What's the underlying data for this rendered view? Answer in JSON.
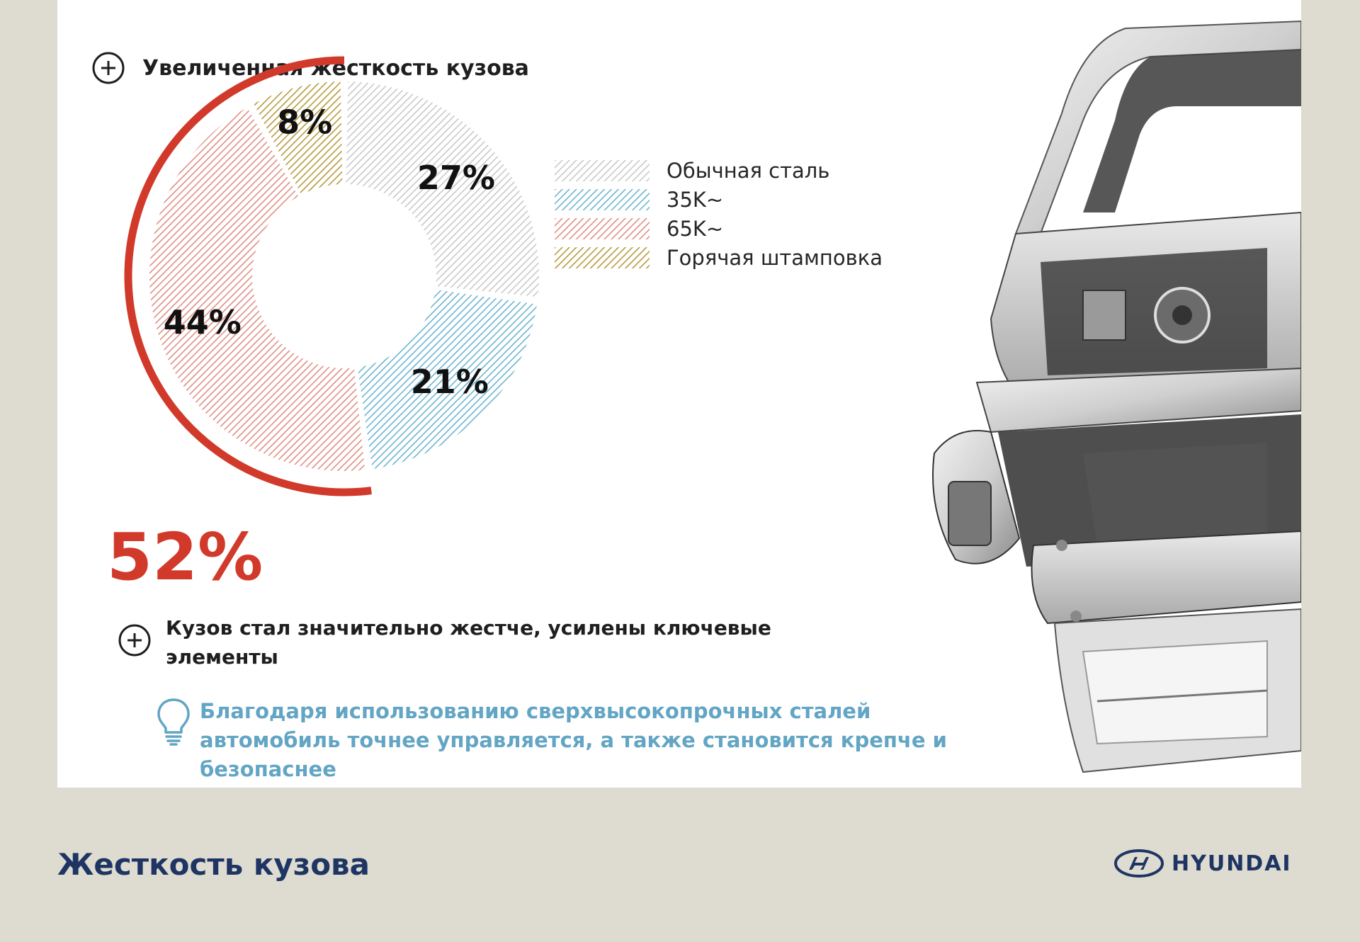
{
  "heading": {
    "text": "Увеличенная жёсткость кузова",
    "icon": "plus-circle-icon"
  },
  "chart_data": {
    "type": "pie",
    "variant": "donut",
    "slices": [
      {
        "label": "Обычная сталь",
        "value": 27,
        "value_label": "27%",
        "color": "#c9c9c9",
        "pattern": "hatched"
      },
      {
        "label": "35K~",
        "value": 21,
        "value_label": "21%",
        "color": "#6eb5d0",
        "pattern": "hatched"
      },
      {
        "label": "65K~",
        "value": 44,
        "value_label": "44%",
        "color": "#e08f84",
        "pattern": "hatched"
      },
      {
        "label": "Горячая штамповка",
        "value": 8,
        "value_label": "8%",
        "color": "#b89a3c",
        "pattern": "hatched"
      }
    ],
    "highlight": {
      "label": "52%",
      "value": 52,
      "color": "#d13a2a",
      "covers": [
        "65K~",
        "Горячая штамповка"
      ]
    },
    "legend_position": "right"
  },
  "point": {
    "text": "Кузов стал значительно жестче, усилены ключевые элементы",
    "icon": "plus-circle-icon"
  },
  "tip": {
    "text": "Благодаря использованию сверхвысокопрочных сталей автомобиль точнее управляется, а также становится крепче и безопаснее",
    "icon": "lightbulb-icon",
    "color": "#62a5c4"
  },
  "footer": {
    "title": "Жесткость кузова",
    "brand": "HYUNDAI"
  },
  "image": {
    "subject": "car-body-frame"
  }
}
